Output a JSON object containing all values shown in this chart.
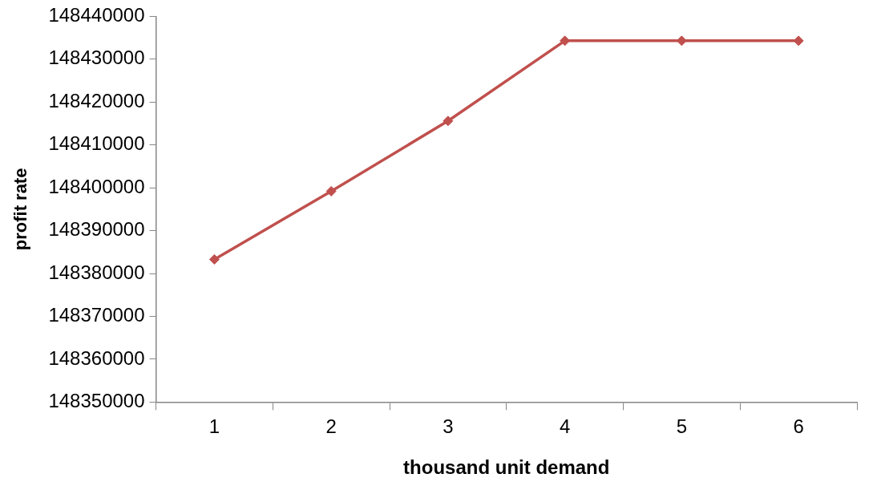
{
  "chart_data": {
    "type": "line",
    "xlabel": "thousand unit demand",
    "ylabel": "profit rate",
    "categories": [
      "1",
      "2",
      "3",
      "4",
      "5",
      "6"
    ],
    "series": [
      {
        "color": "#c0504d",
        "values": [
          148383300,
          148399200,
          148415600,
          148434300,
          148434300,
          148434300
        ]
      }
    ],
    "ylim": [
      148350000,
      148440000
    ],
    "yticks": [
      148350000,
      148360000,
      148370000,
      148380000,
      148390000,
      148400000,
      148410000,
      148420000,
      148430000,
      148440000
    ],
    "grid": false,
    "legend": false,
    "marker": "diamond",
    "line_style": "solid"
  }
}
